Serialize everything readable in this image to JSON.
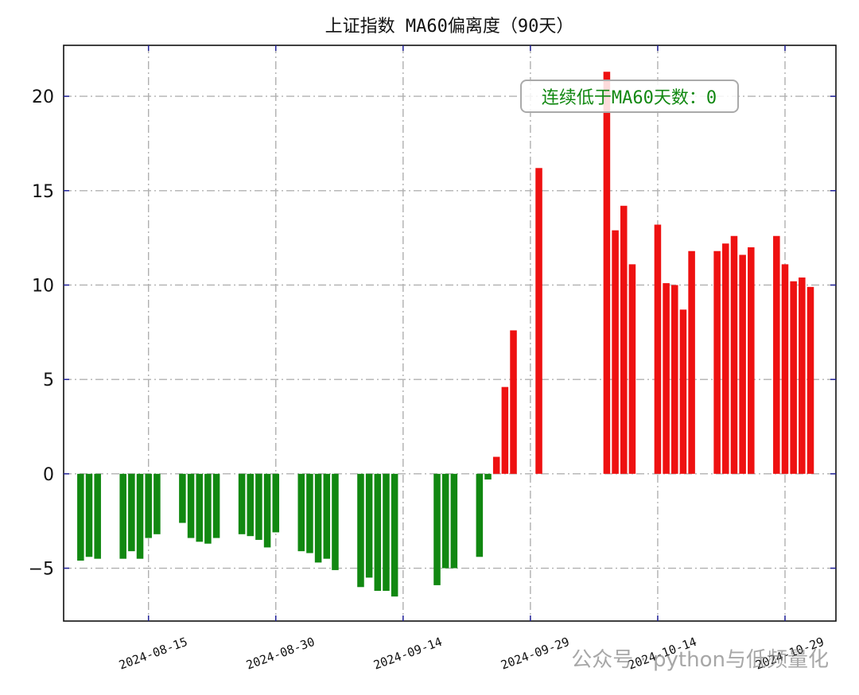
{
  "chart_data": {
    "type": "bar",
    "title": "上证指数 MA60偏离度（90天）",
    "xlabel": "",
    "ylabel": "",
    "ylim": [
      -7.8,
      22.7
    ],
    "yticks": [
      -5,
      0,
      5,
      10,
      15,
      20
    ],
    "xlim": [
      "2024-08-05",
      "2024-11-04"
    ],
    "xticks": [
      "2024-08-15",
      "2024-08-30",
      "2024-09-14",
      "2024-09-29",
      "2024-10-14",
      "2024-10-29"
    ],
    "grid": true,
    "positive_color": "#ee1111",
    "negative_color": "#118811",
    "annotation": "连续低于MA60天数：0",
    "watermark": "公众号 · python与低频量化",
    "series": [
      {
        "x": [
          "2024-08-07",
          "2024-08-08",
          "2024-08-09",
          "2024-08-12",
          "2024-08-13",
          "2024-08-14",
          "2024-08-15",
          "2024-08-16",
          "2024-08-19",
          "2024-08-20",
          "2024-08-21",
          "2024-08-22",
          "2024-08-23",
          "2024-08-26",
          "2024-08-27",
          "2024-08-28",
          "2024-08-29",
          "2024-08-30",
          "2024-09-02",
          "2024-09-03",
          "2024-09-04",
          "2024-09-05",
          "2024-09-06",
          "2024-09-09",
          "2024-09-10",
          "2024-09-11",
          "2024-09-12",
          "2024-09-13",
          "2024-09-18",
          "2024-09-19",
          "2024-09-20",
          "2024-09-23",
          "2024-09-24",
          "2024-09-25",
          "2024-09-26",
          "2024-09-27",
          "2024-09-30",
          "2024-10-08",
          "2024-10-09",
          "2024-10-10",
          "2024-10-11",
          "2024-10-14",
          "2024-10-15",
          "2024-10-16",
          "2024-10-17",
          "2024-10-18",
          "2024-10-21",
          "2024-10-22",
          "2024-10-23",
          "2024-10-24",
          "2024-10-25",
          "2024-10-28",
          "2024-10-29",
          "2024-10-30",
          "2024-10-31",
          "2024-11-01"
        ],
        "values": [
          -4.6,
          -4.4,
          -4.5,
          -4.5,
          -4.1,
          -4.5,
          -3.4,
          -3.2,
          -2.6,
          -3.4,
          -3.6,
          -3.7,
          -3.4,
          -3.2,
          -3.3,
          -3.5,
          -3.9,
          -3.1,
          -4.1,
          -4.2,
          -4.7,
          -4.5,
          -5.1,
          -6.0,
          -5.5,
          -6.2,
          -6.2,
          -6.5,
          -5.9,
          -5.0,
          -5.0,
          -4.4,
          -0.3,
          0.9,
          4.6,
          7.6,
          16.2,
          21.3,
          12.9,
          14.2,
          11.1,
          13.2,
          10.1,
          10.0,
          8.7,
          11.8,
          11.8,
          12.2,
          12.6,
          11.6,
          12.0,
          12.6,
          11.1,
          10.2,
          10.4,
          9.9
        ]
      }
    ]
  }
}
